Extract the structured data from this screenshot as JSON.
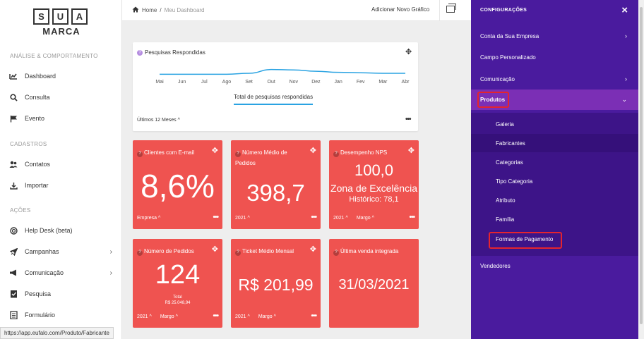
{
  "logo": {
    "letters": [
      "S",
      "U",
      "A"
    ],
    "word": "MARCA"
  },
  "sidebar": {
    "sections": [
      {
        "title": "ANÁLISE & COMPORTAMENTO"
      },
      {
        "title": "CADASTROS"
      },
      {
        "title": "AÇÕES"
      }
    ],
    "items": [
      {
        "label": "Dashboard",
        "icon": "chart-icon"
      },
      {
        "label": "Consulta",
        "icon": "search-icon"
      },
      {
        "label": "Evento",
        "icon": "flag-icon"
      },
      {
        "label": "Contatos",
        "icon": "contacts-icon"
      },
      {
        "label": "Importar",
        "icon": "import-icon"
      },
      {
        "label": "Help Desk (beta)",
        "icon": "lifebuoy-icon"
      },
      {
        "label": "Campanhas",
        "icon": "rocket-icon"
      },
      {
        "label": "Comunicação",
        "icon": "megaphone-icon"
      },
      {
        "label": "Pesquisa",
        "icon": "checklist-icon"
      },
      {
        "label": "Formulário",
        "icon": "form-icon"
      }
    ]
  },
  "topbar": {
    "home": "Home",
    "separator": "/",
    "current": "Meu Dashboard",
    "add_chart": "Adicionar Novo Gráfico"
  },
  "chart_card": {
    "title": "Pesquisas Respondidas",
    "tab": "Total de pesquisas respondidas",
    "period": "Últimos 12 Meses ^"
  },
  "chart_data": {
    "type": "line",
    "categories": [
      "Mai",
      "Jun",
      "Jul",
      "Ago",
      "Set",
      "Out",
      "Nov",
      "Dez",
      "Jan",
      "Fev",
      "Mar",
      "Abr"
    ],
    "series": [
      {
        "values": [
          1,
          1,
          1,
          1,
          1.5,
          3.5,
          3.3,
          2.6,
          2,
          1.8,
          1.5,
          1.5
        ]
      }
    ],
    "ylim": [
      0,
      6
    ],
    "color": "#2aa3e2"
  },
  "kpis": [
    {
      "title": "Clientes com E-mail",
      "value": "8,6%",
      "foot": [
        "Empresa ^"
      ]
    },
    {
      "title": "Número Médio de Pedidos",
      "value": "398,7",
      "foot": [
        "2021 ^"
      ]
    },
    {
      "title": "Desempenho NPS",
      "value": "100,0",
      "sub1": "Zona de Excelência",
      "sub2": "Histórico: 78,1",
      "foot": [
        "2021 ^",
        "Margo ^"
      ]
    },
    {
      "title": "Número de Pedidos",
      "value": "124",
      "sub1": "Total",
      "sub2": "R$ 25.048,94",
      "foot": [
        "2021 ^",
        "Margo ^"
      ]
    },
    {
      "title": "Ticket Médio Mensal",
      "value": "R$ 201,99",
      "foot": [
        "2021 ^",
        "Margo ^"
      ]
    },
    {
      "title": "Última venda integrada",
      "value": "31/03/2021",
      "foot": []
    }
  ],
  "panel": {
    "title": "CONFIGURAÇÕES",
    "close": "×",
    "items": [
      "Conta da Sua Empresa",
      "Campo Personalizado",
      "Comunicação",
      "Produtos",
      "Vendedores"
    ],
    "subitems": [
      "Galeria",
      "Fabricantes",
      "Categorias",
      "Tipo Categoria",
      "Atributo",
      "Família",
      "Formas de Pagamento"
    ]
  },
  "status_url": "https://app.eufalo.com/Produto/Fabricante",
  "colors": {
    "panel": "#4a1b9e",
    "active": "#7b2fb5",
    "kpi": "#ef5350",
    "accent": "#2aa3e2",
    "highlight": "#e5242e"
  }
}
